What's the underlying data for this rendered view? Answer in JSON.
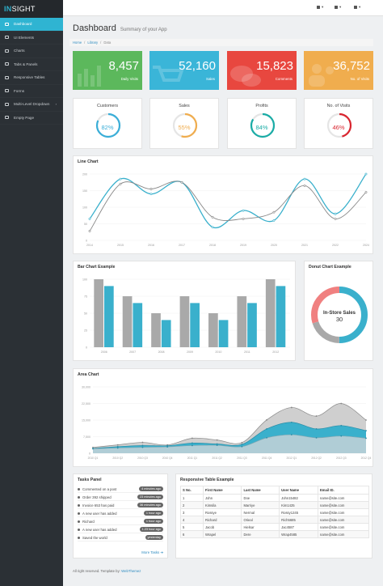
{
  "brand": {
    "accent": "IN",
    "rest": "SIGHT"
  },
  "sidebar": {
    "items": [
      {
        "label": "Dashboard",
        "active": true,
        "arrow": ""
      },
      {
        "label": "UI Elements",
        "active": false,
        "arrow": ""
      },
      {
        "label": "Charts",
        "active": false,
        "arrow": ""
      },
      {
        "label": "Tabs & Panels",
        "active": false,
        "arrow": ""
      },
      {
        "label": "Responsive Tables",
        "active": false,
        "arrow": ""
      },
      {
        "label": "Forms",
        "active": false,
        "arrow": ""
      },
      {
        "label": "Multi-Level Dropdown",
        "active": false,
        "arrow": "›"
      },
      {
        "label": "Empty Page",
        "active": false,
        "arrow": ""
      }
    ]
  },
  "topbar": {
    "caret": "▾"
  },
  "page": {
    "title": "Dashboard",
    "subtitle": "Summary of your App"
  },
  "breadcrumb": {
    "items": [
      "Home",
      "Library",
      "Data"
    ],
    "sep": "/"
  },
  "stats": [
    {
      "value": "8,457",
      "label": "Daily Visits",
      "color": "#5cb85c"
    },
    {
      "value": "52,160",
      "label": "Sales",
      "color": "#3ab5d8"
    },
    {
      "value": "15,823",
      "label": "Comments",
      "color": "#e8473f"
    },
    {
      "value": "36,752",
      "label": "No. of Visits",
      "color": "#f0ad4e"
    }
  ],
  "donuts": [
    {
      "title": "Customers",
      "percent_text": "82%",
      "percent": 82,
      "color": "#3aaed8"
    },
    {
      "title": "Sales",
      "percent_text": "55%",
      "percent": 55,
      "color": "#f0ad4e"
    },
    {
      "title": "Profits",
      "percent_text": "84%",
      "percent": 84,
      "color": "#1aaca6"
    },
    {
      "title": "No. of Visits",
      "percent_text": "46%",
      "percent": 46,
      "color": "#d9252f"
    }
  ],
  "line_chart": {
    "title": "Line Chart"
  },
  "bar_chart": {
    "title": "Bar Chart Example"
  },
  "donut_chart": {
    "title": "Donut Chart Example",
    "center_label": "In-Store Sales",
    "center_value": "30"
  },
  "area_chart": {
    "title": "Area Chart"
  },
  "chart_data": [
    {
      "type": "line",
      "x": [
        "2014",
        "2015",
        "2016",
        "2017",
        "2018",
        "2019",
        "2020",
        "2021",
        "2022",
        "2024"
      ],
      "yticks": [
        "0",
        "50",
        "100",
        "150",
        "200"
      ],
      "ylim": [
        0,
        200
      ],
      "series": [
        {
          "color": "#3ab0cc",
          "values": [
            65,
            185,
            140,
            175,
            40,
            90,
            60,
            185,
            80,
            200
          ]
        },
        {
          "color": "#888888",
          "values": [
            28,
            170,
            155,
            175,
            70,
            65,
            85,
            165,
            65,
            145
          ]
        }
      ]
    },
    {
      "type": "bar",
      "categories": [
        "2006",
        "2007",
        "2008",
        "2009",
        "2010",
        "2011",
        "2012"
      ],
      "yticks": [
        "0",
        "25",
        "50",
        "75",
        "100"
      ],
      "ylim": [
        0,
        100
      ],
      "series": [
        {
          "color": "#a9a9a9",
          "values": [
            100,
            75,
            50,
            75,
            50,
            75,
            100
          ]
        },
        {
          "color": "#3ab0cc",
          "values": [
            90,
            65,
            40,
            65,
            40,
            65,
            90
          ]
        }
      ]
    },
    {
      "type": "pie",
      "slices": [
        {
          "value": 50,
          "color": "#3ab0cc"
        },
        {
          "value": 20,
          "color": "#a9a9a9"
        },
        {
          "value": 30,
          "color": "#f08080"
        }
      ]
    },
    {
      "type": "area",
      "x": [
        "2010 Q1",
        "2010 Q2",
        "2010 Q3",
        "2010 Q4",
        "2011 Q1",
        "2011 Q2",
        "2011 Q3",
        "2011 Q4",
        "2012 Q1",
        "2012 Q2",
        "2012 Q3",
        "2012 Q4"
      ],
      "yticks": [
        "0",
        "7,500",
        "15,000",
        "22,500",
        "30,000"
      ],
      "ylim": [
        0,
        30000
      ],
      "series": [
        {
          "color": "#a9a9a9",
          "values": [
            2666,
            3800,
            4912,
            3767,
            6810,
            6000,
            4820,
            15073,
            20687,
            16800,
            22500,
            15000
          ]
        },
        {
          "color": "#3ab0cc",
          "values": [
            2200,
            3000,
            3500,
            3400,
            4600,
            4200,
            4000,
            11000,
            14000,
            11000,
            12500,
            10200
          ]
        },
        {
          "color": "#9ec9d6",
          "values": [
            2000,
            2400,
            2700,
            2900,
            3500,
            3600,
            3000,
            7000,
            8400,
            7000,
            7800,
            6800
          ]
        }
      ]
    }
  ],
  "tasks": {
    "title": "Tasks Panel",
    "items": [
      {
        "text": "Commented on a post",
        "badge": "4 minutes ago"
      },
      {
        "text": "Order 392 shipped",
        "badge": "23 minutes ago"
      },
      {
        "text": "Invoice 653 has paid",
        "badge": "36 minutes ago"
      },
      {
        "text": "A new user has added",
        "badge": "1 hour ago"
      },
      {
        "text": "Richard",
        "badge": "1 hour ago"
      },
      {
        "text": "A new user has added",
        "badge": "1.23 hour ago"
      },
      {
        "text": "Saved the world",
        "badge": "yesterday"
      }
    ],
    "more": "More Tasks"
  },
  "table": {
    "title": "Responsive Table Example",
    "headers": [
      "S No.",
      "First Name",
      "Last Name",
      "User Name",
      "Email ID."
    ],
    "rows": [
      [
        "1",
        "John",
        "Doe",
        "John15482",
        "name@site.com"
      ],
      [
        "2",
        "Kimsila",
        "Marriye",
        "Kim1425",
        "name@site.com"
      ],
      [
        "3",
        "Rossye",
        "Nermal",
        "Rossy1245",
        "name@site.com"
      ],
      [
        "4",
        "Richard",
        "Orieal",
        "Rich5685",
        "name@site.com"
      ],
      [
        "5",
        "Jacob",
        "Hielsar",
        "Jac4587",
        "name@site.com"
      ],
      [
        "6",
        "Wrapel",
        "Dere",
        "Wrap4585",
        "name@site.com"
      ]
    ]
  },
  "footer": {
    "text": "All right reserved. Template by:",
    "link": "WebThemez"
  }
}
